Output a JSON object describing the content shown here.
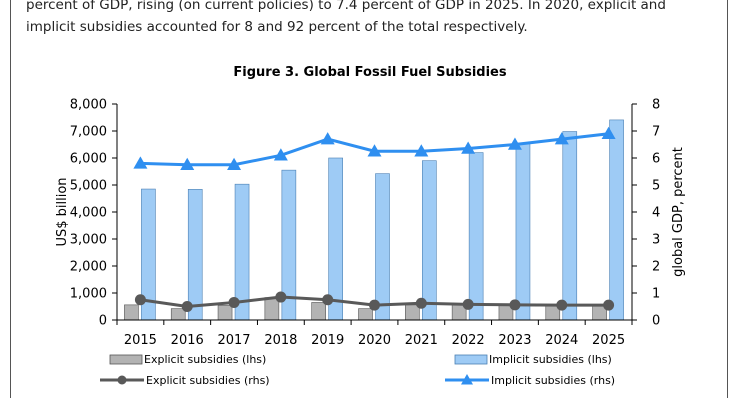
{
  "intro": {
    "line1": "percent of GDP, rising (on current policies) to 7.4 percent of GDP in 2025. In 2020, explicit and",
    "line2": "implicit subsidies accounted for 8 and 92 percent of the total respectively."
  },
  "colors": {
    "explicit_bar": "#b3b3b3",
    "implicit_bar": "#9ecbf5",
    "explicit_line": "#595959",
    "implicit_line": "#2f8ff0"
  },
  "chart_data": {
    "type": "bar",
    "title": "Figure 3. Global Fossil Fuel Subsidies",
    "categories": [
      "2015",
      "2016",
      "2017",
      "2018",
      "2019",
      "2020",
      "2021",
      "2022",
      "2023",
      "2024",
      "2025"
    ],
    "ylabel_left": "US$ billion",
    "ylabel_right": "global GDP, percent",
    "ylim_left": [
      0,
      8000
    ],
    "ylim_right": [
      0,
      8
    ],
    "left_ticks": [
      "0",
      "1,000",
      "2,000",
      "3,000",
      "4,000",
      "5,000",
      "6,000",
      "7,000",
      "8,000"
    ],
    "right_ticks": [
      "0",
      "1",
      "2",
      "3",
      "4",
      "5",
      "6",
      "7",
      "8"
    ],
    "series": [
      {
        "name": "Explicit subsidies (lhs)",
        "kind": "bar",
        "axis": "left",
        "values": [
          560,
          420,
          540,
          830,
          650,
          420,
          560,
          590,
          560,
          530,
          520
        ]
      },
      {
        "name": "Implicit subsidies (lhs)",
        "kind": "bar",
        "axis": "left",
        "values": [
          4850,
          4840,
          5030,
          5550,
          6000,
          5420,
          5900,
          6200,
          6550,
          6980,
          7410
        ]
      },
      {
        "name": "Explicit subsidies (rhs)",
        "kind": "line",
        "axis": "right",
        "marker": "circle",
        "values": [
          0.75,
          0.5,
          0.65,
          0.85,
          0.75,
          0.55,
          0.62,
          0.58,
          0.56,
          0.55,
          0.55
        ]
      },
      {
        "name": "Implicit subsidies (rhs)",
        "kind": "line",
        "axis": "right",
        "marker": "triangle",
        "values": [
          5.8,
          5.75,
          5.75,
          6.1,
          6.7,
          6.25,
          6.25,
          6.35,
          6.5,
          6.7,
          6.9
        ]
      }
    ],
    "grid": false,
    "legend_position": "bottom"
  }
}
